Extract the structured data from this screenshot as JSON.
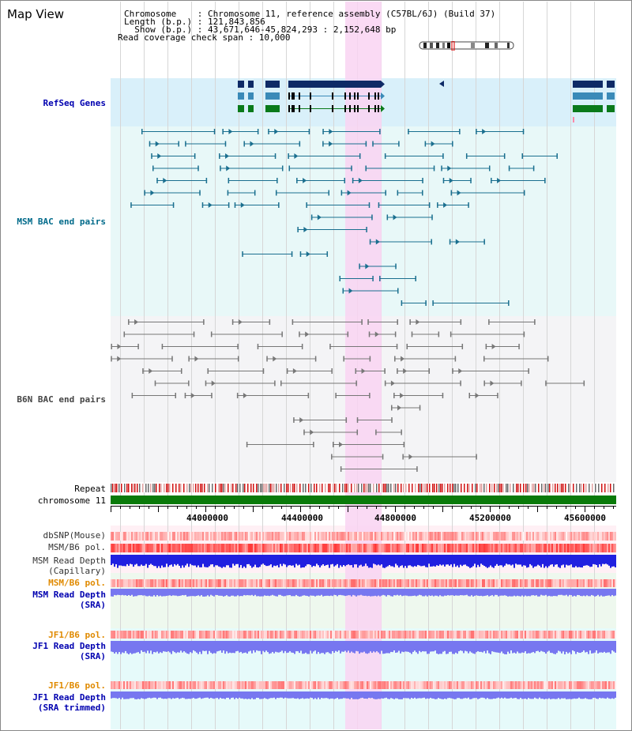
{
  "header": {
    "title": "Map View",
    "chromosome_label": "Chromosome    : Chromosome 11, reference assembly (C57BL/6J) (Build 37)",
    "length_label": "Length (b.p.) : 121,843,856",
    "show_label": "  Show (b.p.) : 43,671,646-45,824,293 : 2,152,648 bp",
    "coverage_label": "Read coverage check span : 10,000"
  },
  "tracks": {
    "refseq": "RefSeq Genes",
    "msm_bac": "MSM BAC end pairs",
    "b6n_bac": "B6N BAC end pairs",
    "repeat": "Repeat",
    "chromosome": "chromosome 11",
    "dbsnp": "dbSNP(Mouse)",
    "msm_pol": "MSM/B6 pol.",
    "msm_depth_cap_1": "MSM Read Depth",
    "msm_depth_cap_2": "(Capillary)",
    "msm_pol_2": "MSM/B6 pol.",
    "msm_depth_sra_1": "MSM Read Depth",
    "msm_depth_sra_2": "(SRA)",
    "jf1_pol": "JF1/B6 pol.",
    "jf1_depth_1": "JF1 Read Depth",
    "jf1_depth_2": "(SRA)",
    "jf1_pol_2": "JF1/B6 pol.",
    "jf1_trim_1": "JF1 Read Depth",
    "jf1_trim_2": "(SRA trimmed)"
  },
  "axis": {
    "ticks": [
      "44000000",
      "44400000",
      "44800000",
      "45200000",
      "45600000"
    ]
  },
  "colors": {
    "highlight": "#f9d4f2",
    "refseq_bg": "#d9f0fa",
    "msm_bg": "#e8f8f8",
    "b6n_bg": "#f4f4f6",
    "gene_dark": "#0e2a66",
    "gene_mid": "#3a8ab8",
    "gene_green": "#0a7a1a",
    "msm_line": "#1a6f8f",
    "b6n_line": "#777777",
    "depth_blue": "#2020e0",
    "depth_violet": "#7777f0",
    "pol_red": "#ff4444",
    "chrom_green": "#0a7a0a"
  }
}
